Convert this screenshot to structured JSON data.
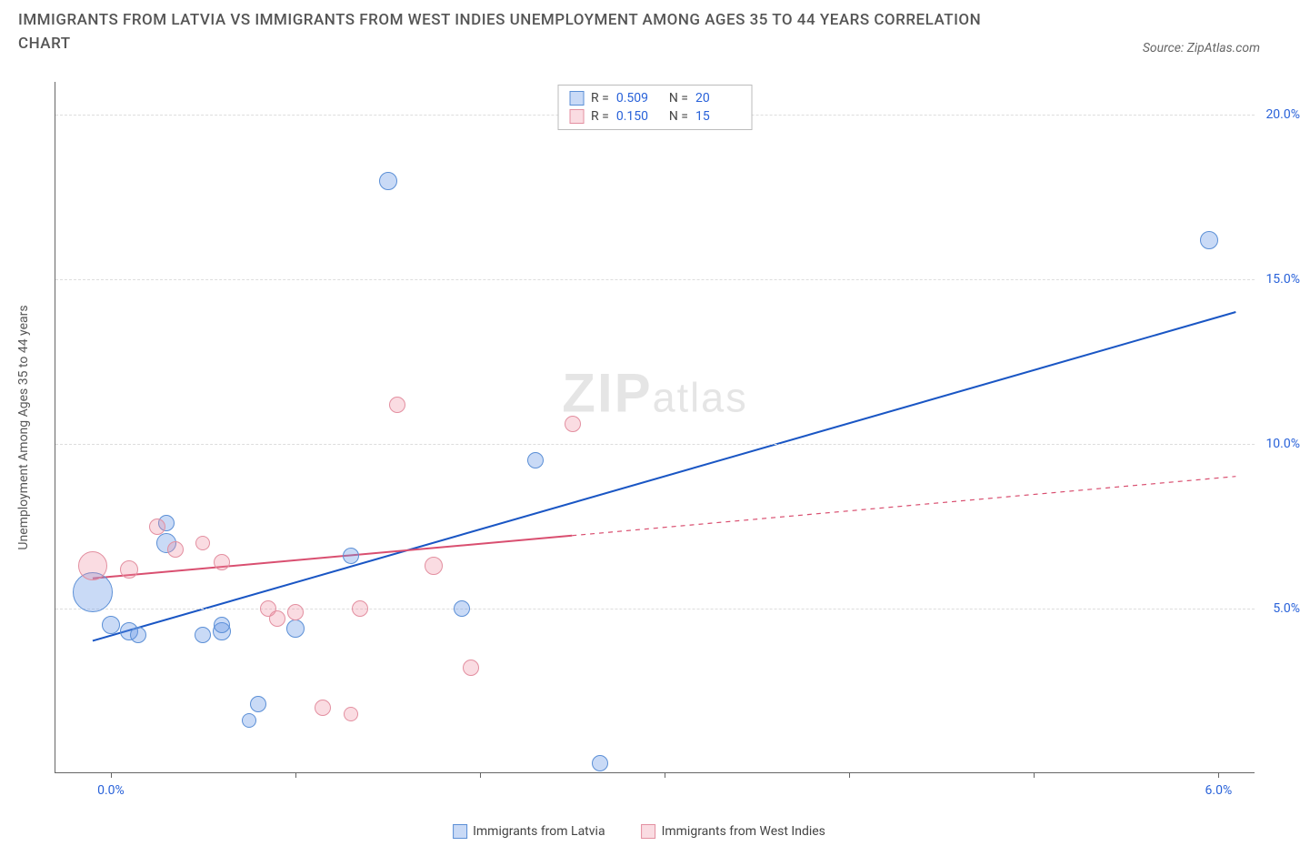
{
  "header": {
    "title": "IMMIGRANTS FROM LATVIA VS IMMIGRANTS FROM WEST INDIES UNEMPLOYMENT AMONG AGES 35 TO 44 YEARS CORRELATION CHART",
    "source": "Source: ZipAtlas.com"
  },
  "chart": {
    "type": "scatter",
    "y_axis_label": "Unemployment Among Ages 35 to 44 years",
    "xlim": [
      -0.3,
      6.2
    ],
    "ylim": [
      0,
      21
    ],
    "x_ticks": [
      0.0,
      1.0,
      2.0,
      3.0,
      4.0,
      5.0,
      6.0
    ],
    "x_tick_labels": [
      "0.0%",
      "",
      "",
      "",
      "",
      "",
      "6.0%"
    ],
    "y_ticks": [
      5.0,
      10.0,
      15.0,
      20.0
    ],
    "y_tick_labels": [
      "5.0%",
      "10.0%",
      "15.0%",
      "20.0%"
    ],
    "x_tick_color": "#2962d9",
    "y_tick_color": "#2962d9",
    "grid_color": "#dddddd",
    "axis_color": "#666666",
    "series": [
      {
        "name": "Immigrants from Latvia",
        "color_fill": "rgba(100,150,230,0.35)",
        "color_stroke": "#5b8fd6",
        "line_color": "#1a56c4",
        "R": "0.509",
        "N": "20",
        "trend": {
          "x1": -0.1,
          "y1": 4.0,
          "x2": 6.1,
          "y2": 14.0,
          "solid_until_x": 6.1
        },
        "points": [
          {
            "x": -0.1,
            "y": 5.5,
            "r": 22
          },
          {
            "x": 0.0,
            "y": 4.5,
            "r": 10
          },
          {
            "x": 0.1,
            "y": 4.3,
            "r": 10
          },
          {
            "x": 0.15,
            "y": 4.2,
            "r": 9
          },
          {
            "x": 0.3,
            "y": 7.0,
            "r": 11
          },
          {
            "x": 0.3,
            "y": 7.6,
            "r": 9
          },
          {
            "x": 0.5,
            "y": 4.2,
            "r": 9
          },
          {
            "x": 0.6,
            "y": 4.3,
            "r": 10
          },
          {
            "x": 0.6,
            "y": 4.5,
            "r": 9
          },
          {
            "x": 0.75,
            "y": 1.6,
            "r": 8
          },
          {
            "x": 0.8,
            "y": 2.1,
            "r": 9
          },
          {
            "x": 1.0,
            "y": 4.4,
            "r": 10
          },
          {
            "x": 1.3,
            "y": 6.6,
            "r": 9
          },
          {
            "x": 1.5,
            "y": 18.0,
            "r": 10
          },
          {
            "x": 1.9,
            "y": 5.0,
            "r": 9
          },
          {
            "x": 2.3,
            "y": 9.5,
            "r": 9
          },
          {
            "x": 2.65,
            "y": 0.3,
            "r": 9
          },
          {
            "x": 5.95,
            "y": 16.2,
            "r": 10
          }
        ]
      },
      {
        "name": "Immigrants from West Indies",
        "color_fill": "rgba(240,140,160,0.30)",
        "color_stroke": "#e38fa0",
        "line_color": "#d94f70",
        "R": "0.150",
        "N": "15",
        "trend": {
          "x1": -0.1,
          "y1": 5.9,
          "x2": 6.1,
          "y2": 9.0,
          "solid_until_x": 2.5
        },
        "points": [
          {
            "x": -0.1,
            "y": 6.3,
            "r": 16
          },
          {
            "x": 0.1,
            "y": 6.2,
            "r": 10
          },
          {
            "x": 0.25,
            "y": 7.5,
            "r": 9
          },
          {
            "x": 0.35,
            "y": 6.8,
            "r": 9
          },
          {
            "x": 0.5,
            "y": 7.0,
            "r": 8
          },
          {
            "x": 0.6,
            "y": 6.4,
            "r": 9
          },
          {
            "x": 0.85,
            "y": 5.0,
            "r": 9
          },
          {
            "x": 0.9,
            "y": 4.7,
            "r": 9
          },
          {
            "x": 1.0,
            "y": 4.9,
            "r": 9
          },
          {
            "x": 1.15,
            "y": 2.0,
            "r": 9
          },
          {
            "x": 1.3,
            "y": 1.8,
            "r": 8
          },
          {
            "x": 1.35,
            "y": 5.0,
            "r": 9
          },
          {
            "x": 1.55,
            "y": 11.2,
            "r": 9
          },
          {
            "x": 1.75,
            "y": 6.3,
            "r": 10
          },
          {
            "x": 1.95,
            "y": 3.2,
            "r": 9
          },
          {
            "x": 2.5,
            "y": 10.6,
            "r": 9
          }
        ]
      }
    ],
    "watermark": {
      "part1": "ZIP",
      "part2": "atlas"
    },
    "bottom_legend": [
      {
        "label": "Immigrants from Latvia",
        "fill": "rgba(100,150,230,0.35)",
        "stroke": "#5b8fd6"
      },
      {
        "label": "Immigrants from West Indies",
        "fill": "rgba(240,140,160,0.30)",
        "stroke": "#e38fa0"
      }
    ],
    "stat_legend_labels": {
      "R": "R =",
      "N": "N ="
    }
  }
}
